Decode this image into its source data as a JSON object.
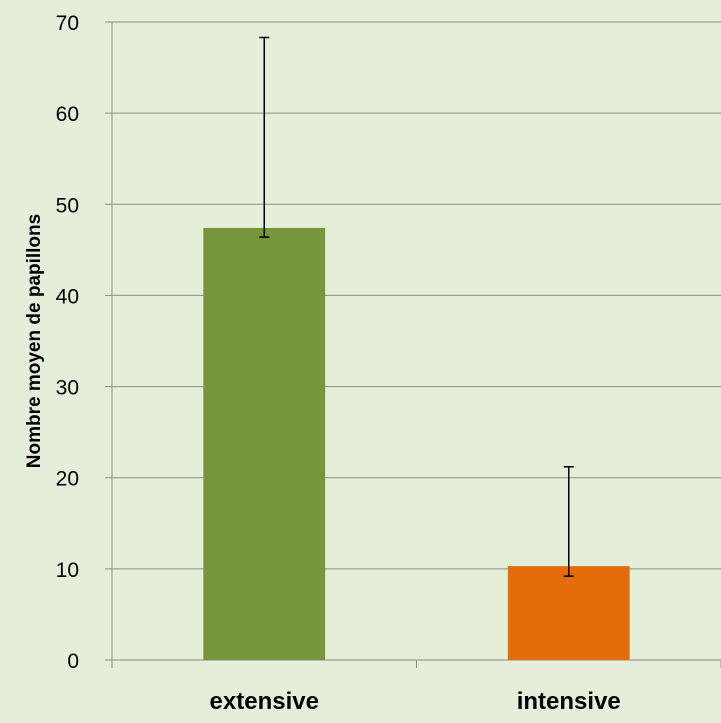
{
  "chart_data": {
    "type": "bar",
    "categories": [
      "extensive",
      "intensive"
    ],
    "series": [
      {
        "values": [
          47.4,
          10.3
        ],
        "error_low": [
          46.4,
          9.2
        ],
        "error_high": [
          68.3,
          21.2
        ]
      }
    ],
    "bar_colors": [
      "#76963b",
      "#e46c0a"
    ],
    "xlabel": "",
    "ylabel": "Nombre moyen de papillons",
    "ylim": [
      0,
      70
    ],
    "yticks": [
      0,
      10,
      20,
      30,
      40,
      50,
      60,
      70
    ],
    "grid": true,
    "legend": "none",
    "background_color": "#e5eed8",
    "grid_color": "#8c8c8c"
  }
}
